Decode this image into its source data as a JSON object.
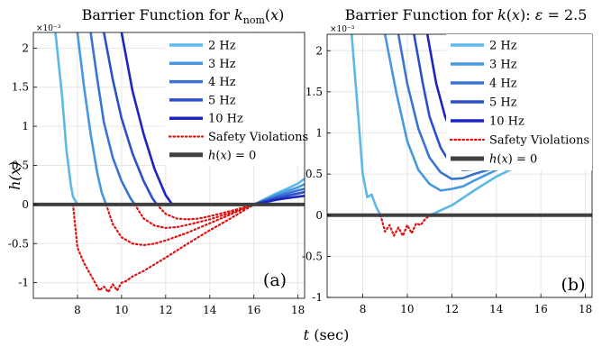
{
  "figure": {
    "xlabel": "t (sec)",
    "ylabel": "h(x)"
  },
  "chart_data": [
    {
      "type": "line",
      "title": "Barrier Function for k_nom(x)",
      "panel_tag": "(a)",
      "exponent_label": "×10⁻³",
      "xlabel": "t (sec)",
      "ylabel": "h(x)",
      "xlim": [
        6,
        18.3
      ],
      "ylim": [
        -1.2,
        2.2
      ],
      "xticks": [
        8,
        10,
        12,
        14,
        16,
        18
      ],
      "yticks": [
        -1,
        -0.5,
        0,
        0.5,
        1,
        1.5,
        2
      ],
      "ytick_labels": [
        "-1",
        "-0.5",
        "0",
        "0.5",
        "1",
        "1.5",
        "2"
      ],
      "grid": true,
      "legend_position": "top-right",
      "series": [
        {
          "name": "2 Hz",
          "color": "#5bb8e8",
          "style": "solid",
          "x": [
            7.0,
            7.3,
            7.5,
            7.7,
            7.8,
            8.0,
            9.0,
            10.0,
            11.0,
            12.0,
            13.0,
            14.0,
            15.0,
            16.0,
            16.5,
            17.0,
            17.5,
            18.0,
            18.3
          ],
          "y": [
            2.2,
            1.4,
            0.7,
            0.25,
            0.1,
            0.0,
            0.0,
            0.0,
            0.0,
            0.0,
            0.0,
            0.0,
            0.0,
            0.0,
            0.07,
            0.14,
            0.2,
            0.27,
            0.33
          ]
        },
        {
          "name": "3 Hz",
          "color": "#4898df",
          "style": "solid",
          "x": [
            8.0,
            8.3,
            8.6,
            8.9,
            9.1,
            9.3,
            10.0,
            11.0,
            12.0,
            13.0,
            14.0,
            15.0,
            16.0,
            16.5,
            17.0,
            17.5,
            18.0,
            18.3
          ],
          "y": [
            2.2,
            1.5,
            0.9,
            0.4,
            0.15,
            0.0,
            0.0,
            0.0,
            0.0,
            0.0,
            0.0,
            0.0,
            0.0,
            0.06,
            0.12,
            0.17,
            0.22,
            0.26
          ]
        },
        {
          "name": "4 Hz",
          "color": "#3a73d4",
          "style": "solid",
          "x": [
            8.6,
            8.9,
            9.2,
            9.6,
            10.0,
            10.4,
            10.6,
            11.0,
            12.0,
            13.0,
            14.0,
            15.0,
            16.0,
            16.5,
            17.0,
            17.5,
            18.0,
            18.3
          ],
          "y": [
            2.2,
            1.6,
            1.05,
            0.6,
            0.3,
            0.08,
            0.0,
            0.0,
            0.0,
            0.0,
            0.0,
            0.0,
            0.0,
            0.05,
            0.1,
            0.14,
            0.18,
            0.2
          ]
        },
        {
          "name": "5 Hz",
          "color": "#2c4fcc",
          "style": "solid",
          "x": [
            9.2,
            9.6,
            10.0,
            10.5,
            11.0,
            11.4,
            11.6,
            12.0,
            13.0,
            14.0,
            15.0,
            16.0,
            16.5,
            17.0,
            17.5,
            18.0,
            18.3
          ],
          "y": [
            2.2,
            1.6,
            1.1,
            0.65,
            0.3,
            0.08,
            0.0,
            0.0,
            0.0,
            0.0,
            0.0,
            0.0,
            0.04,
            0.08,
            0.11,
            0.14,
            0.16
          ]
        },
        {
          "name": "10 Hz",
          "color": "#1c25c2",
          "style": "solid",
          "x": [
            10.0,
            10.5,
            11.0,
            11.5,
            12.0,
            12.3,
            13.0,
            14.0,
            15.0,
            16.0,
            16.5,
            17.0,
            17.5,
            18.0,
            18.3
          ],
          "y": [
            2.2,
            1.45,
            0.9,
            0.45,
            0.12,
            0.0,
            0.0,
            0.0,
            0.0,
            0.0,
            0.03,
            0.06,
            0.08,
            0.1,
            0.11
          ]
        },
        {
          "name": "Safety Violations",
          "color": "#e01010",
          "style": "dotted",
          "segments": [
            {
              "x": [
                7.8,
                8.0,
                8.3,
                8.6,
                8.8,
                9.0,
                9.2,
                9.4,
                9.6,
                9.8,
                10.0,
                10.2,
                10.5,
                11.0,
                12.0,
                13.0,
                14.0,
                15.0,
                16.0
              ],
              "y": [
                0.0,
                -0.55,
                -0.75,
                -0.9,
                -1.0,
                -1.1,
                -1.05,
                -1.12,
                -1.02,
                -1.1,
                -1.0,
                -0.98,
                -0.92,
                -0.85,
                -0.68,
                -0.5,
                -0.33,
                -0.17,
                0.0
              ]
            },
            {
              "x": [
                9.3,
                9.6,
                10.0,
                10.5,
                11.0,
                11.5,
                12.0,
                13.0,
                14.0,
                15.0,
                16.0
              ],
              "y": [
                0.0,
                -0.25,
                -0.42,
                -0.5,
                -0.52,
                -0.5,
                -0.46,
                -0.36,
                -0.24,
                -0.12,
                0.0
              ]
            },
            {
              "x": [
                10.6,
                11.0,
                11.5,
                12.0,
                12.5,
                13.0,
                14.0,
                15.0,
                16.0
              ],
              "y": [
                0.0,
                -0.18,
                -0.27,
                -0.3,
                -0.29,
                -0.26,
                -0.19,
                -0.1,
                0.0
              ]
            },
            {
              "x": [
                11.6,
                12.0,
                12.5,
                13.0,
                13.5,
                14.0,
                15.0,
                16.0
              ],
              "y": [
                0.0,
                -0.12,
                -0.18,
                -0.19,
                -0.18,
                -0.15,
                -0.08,
                0.0
              ]
            }
          ]
        },
        {
          "name": "h(x) = 0",
          "color": "#404040",
          "style": "solid",
          "thick": true,
          "x": [
            6,
            18.3
          ],
          "y": [
            0,
            0
          ]
        }
      ]
    },
    {
      "type": "line",
      "title": "Barrier Function for k(x): ε = 2.5",
      "panel_tag": "(b)",
      "exponent_label": "×10⁻³",
      "xlabel": "t (sec)",
      "ylabel": "h(x)",
      "xlim": [
        6.4,
        18.3
      ],
      "ylim": [
        -1.0,
        2.2
      ],
      "xticks": [
        8,
        10,
        12,
        14,
        16,
        18
      ],
      "yticks": [
        -1,
        -0.5,
        0,
        0.5,
        1,
        1.5,
        2
      ],
      "ytick_labels": [
        "-1",
        "-0.5",
        "0",
        "0.5",
        "1",
        "1.5",
        "2"
      ],
      "grid": true,
      "legend_position": "top-right",
      "series": [
        {
          "name": "2 Hz",
          "color": "#5bb8e8",
          "style": "solid",
          "x": [
            7.5,
            7.8,
            8.0,
            8.2,
            8.4,
            8.6,
            8.8,
            9.0,
            10.0,
            11.0,
            11.2,
            11.5,
            12.0,
            13.0,
            14.0,
            15.0,
            16.0,
            17.0,
            18.0,
            18.3
          ],
          "y": [
            2.2,
            1.2,
            0.5,
            0.22,
            0.25,
            0.1,
            0.0,
            0.0,
            0.0,
            0.0,
            0.02,
            0.06,
            0.12,
            0.3,
            0.47,
            0.6,
            0.75,
            0.9,
            1.02,
            1.1
          ]
        },
        {
          "name": "3 Hz",
          "color": "#4898df",
          "style": "solid",
          "x": [
            9.0,
            9.5,
            10.0,
            10.5,
            11.0,
            11.5,
            12.0,
            12.5,
            13.0,
            14.0,
            15.0,
            16.0,
            17.0,
            18.0,
            18.3
          ],
          "y": [
            2.2,
            1.5,
            0.9,
            0.55,
            0.38,
            0.3,
            0.32,
            0.35,
            0.42,
            0.55,
            0.65,
            0.75,
            0.85,
            0.92,
            0.95
          ]
        },
        {
          "name": "4 Hz",
          "color": "#3a73d4",
          "style": "solid",
          "x": [
            9.6,
            10.0,
            10.5,
            11.0,
            11.5,
            12.0,
            12.5,
            13.0,
            14.0,
            15.0,
            16.0,
            17.0,
            18.0,
            18.3
          ],
          "y": [
            2.2,
            1.6,
            1.05,
            0.7,
            0.52,
            0.44,
            0.45,
            0.5,
            0.58,
            0.68,
            0.78,
            0.85,
            0.9,
            0.92
          ]
        },
        {
          "name": "5 Hz",
          "color": "#2c4fcc",
          "style": "solid",
          "x": [
            10.3,
            10.7,
            11.0,
            11.5,
            12.0,
            12.5,
            13.0,
            14.0,
            15.0,
            16.0,
            17.0,
            18.0,
            18.3
          ],
          "y": [
            2.2,
            1.6,
            1.2,
            0.82,
            0.6,
            0.55,
            0.56,
            0.62,
            0.7,
            0.78,
            0.83,
            0.87,
            0.88
          ]
        },
        {
          "name": "10 Hz",
          "color": "#1c25c2",
          "style": "solid",
          "x": [
            10.9,
            11.3,
            11.7,
            12.0,
            12.5,
            13.0,
            14.0,
            15.0,
            16.0,
            17.0,
            18.0,
            18.3
          ],
          "y": [
            2.2,
            1.6,
            1.2,
            1.0,
            0.8,
            0.72,
            0.7,
            0.72,
            0.76,
            0.8,
            0.83,
            0.84
          ]
        },
        {
          "name": "Safety Violations",
          "color": "#e01010",
          "style": "dotted",
          "segments": [
            {
              "x": [
                8.8,
                8.9,
                9.0,
                9.2,
                9.4,
                9.6,
                9.8,
                10.0,
                10.2,
                10.4,
                10.6,
                10.8,
                11.0
              ],
              "y": [
                0.0,
                -0.1,
                -0.2,
                -0.12,
                -0.25,
                -0.15,
                -0.25,
                -0.12,
                -0.22,
                -0.1,
                -0.12,
                -0.05,
                0.0
              ]
            }
          ]
        },
        {
          "name": "h(x) = 0",
          "color": "#404040",
          "style": "solid",
          "thick": true,
          "x": [
            6.4,
            18.3
          ],
          "y": [
            0,
            0
          ]
        }
      ]
    }
  ]
}
